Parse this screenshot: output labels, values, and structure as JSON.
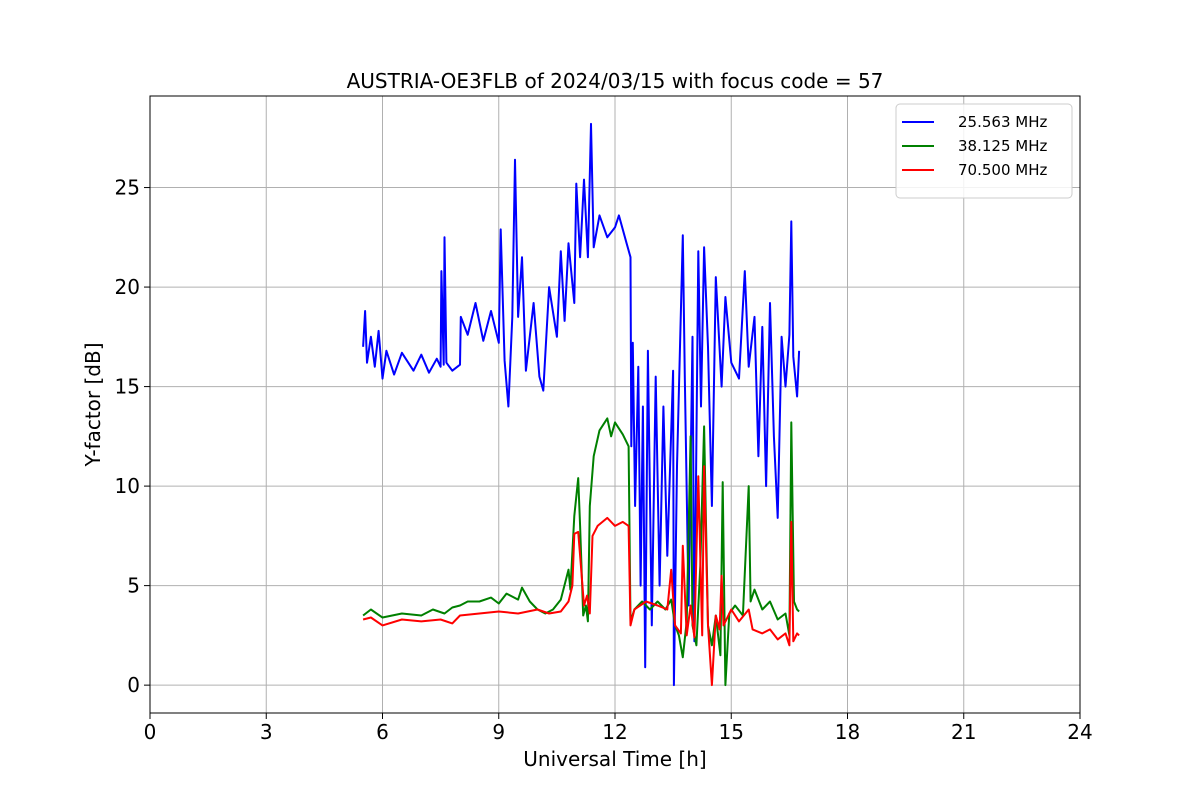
{
  "chart_data": {
    "type": "line",
    "title": "AUSTRIA-OE3FLB of 2024/03/15 with focus code = 57",
    "xlabel": "Universal Time [h]",
    "ylabel": "Y-factor [dB]",
    "xlim": [
      0,
      24
    ],
    "ylim": [
      -1.4,
      29.6
    ],
    "xticks": [
      0,
      3,
      6,
      9,
      12,
      15,
      18,
      21,
      24
    ],
    "yticks": [
      0,
      5,
      10,
      15,
      20,
      25
    ],
    "grid": true,
    "legend_position": "top-right",
    "series": [
      {
        "name": "25.563 MHz",
        "color": "#0000ff",
        "points": [
          [
            5.5,
            17.0
          ],
          [
            5.55,
            18.8
          ],
          [
            5.6,
            16.2
          ],
          [
            5.7,
            17.5
          ],
          [
            5.8,
            16.0
          ],
          [
            5.9,
            17.8
          ],
          [
            6.0,
            15.4
          ],
          [
            6.1,
            16.8
          ],
          [
            6.3,
            15.6
          ],
          [
            6.5,
            16.7
          ],
          [
            6.8,
            15.8
          ],
          [
            7.0,
            16.6
          ],
          [
            7.2,
            15.7
          ],
          [
            7.4,
            16.4
          ],
          [
            7.5,
            16.0
          ],
          [
            7.52,
            20.8
          ],
          [
            7.58,
            16.1
          ],
          [
            7.6,
            22.5
          ],
          [
            7.65,
            16.2
          ],
          [
            7.8,
            15.8
          ],
          [
            8.0,
            16.1
          ],
          [
            8.02,
            18.5
          ],
          [
            8.2,
            17.6
          ],
          [
            8.4,
            19.2
          ],
          [
            8.6,
            17.3
          ],
          [
            8.8,
            18.8
          ],
          [
            9.0,
            17.2
          ],
          [
            9.05,
            22.9
          ],
          [
            9.15,
            16.3
          ],
          [
            9.25,
            14.0
          ],
          [
            9.35,
            18.5
          ],
          [
            9.42,
            26.4
          ],
          [
            9.5,
            18.5
          ],
          [
            9.6,
            21.5
          ],
          [
            9.7,
            15.8
          ],
          [
            9.9,
            19.2
          ],
          [
            10.05,
            15.5
          ],
          [
            10.15,
            14.8
          ],
          [
            10.3,
            20.0
          ],
          [
            10.5,
            17.5
          ],
          [
            10.6,
            21.8
          ],
          [
            10.7,
            18.3
          ],
          [
            10.8,
            22.2
          ],
          [
            10.95,
            19.2
          ],
          [
            11.0,
            25.2
          ],
          [
            11.1,
            21.5
          ],
          [
            11.2,
            25.4
          ],
          [
            11.3,
            21.5
          ],
          [
            11.38,
            28.2
          ],
          [
            11.45,
            22.0
          ],
          [
            11.6,
            23.6
          ],
          [
            11.8,
            22.5
          ],
          [
            12.0,
            23.0
          ],
          [
            12.1,
            23.6
          ],
          [
            12.3,
            22.2
          ],
          [
            12.4,
            21.5
          ],
          [
            12.42,
            12.0
          ],
          [
            12.46,
            17.2
          ],
          [
            12.52,
            9.0
          ],
          [
            12.6,
            16.0
          ],
          [
            12.66,
            5.0
          ],
          [
            12.72,
            14.0
          ],
          [
            12.78,
            0.9
          ],
          [
            12.85,
            16.8
          ],
          [
            12.95,
            3.0
          ],
          [
            13.05,
            15.5
          ],
          [
            13.15,
            5.0
          ],
          [
            13.25,
            14.0
          ],
          [
            13.35,
            6.5
          ],
          [
            13.5,
            15.8
          ],
          [
            13.52,
            0.0
          ],
          [
            13.6,
            11.0
          ],
          [
            13.75,
            22.6
          ],
          [
            13.8,
            15.5
          ],
          [
            13.9,
            4.0
          ],
          [
            14.0,
            17.5
          ],
          [
            14.05,
            2.2
          ],
          [
            14.15,
            21.8
          ],
          [
            14.22,
            14.0
          ],
          [
            14.3,
            22.0
          ],
          [
            14.4,
            17.0
          ],
          [
            14.5,
            9.0
          ],
          [
            14.6,
            20.5
          ],
          [
            14.75,
            15.0
          ],
          [
            14.85,
            19.5
          ],
          [
            15.0,
            16.2
          ],
          [
            15.2,
            15.4
          ],
          [
            15.35,
            20.8
          ],
          [
            15.45,
            16.0
          ],
          [
            15.6,
            18.5
          ],
          [
            15.7,
            11.5
          ],
          [
            15.8,
            18.0
          ],
          [
            15.9,
            10.0
          ],
          [
            16.0,
            19.2
          ],
          [
            16.1,
            12.5
          ],
          [
            16.2,
            8.4
          ],
          [
            16.3,
            17.5
          ],
          [
            16.4,
            15.0
          ],
          [
            16.5,
            17.6
          ],
          [
            16.55,
            23.3
          ],
          [
            16.6,
            16.5
          ],
          [
            16.7,
            14.5
          ],
          [
            16.75,
            16.8
          ]
        ]
      },
      {
        "name": "38.125 MHz",
        "color": "#008000",
        "points": [
          [
            5.5,
            3.5
          ],
          [
            5.7,
            3.8
          ],
          [
            6.0,
            3.4
          ],
          [
            6.5,
            3.6
          ],
          [
            7.0,
            3.5
          ],
          [
            7.3,
            3.8
          ],
          [
            7.6,
            3.6
          ],
          [
            7.8,
            3.9
          ],
          [
            8.0,
            4.0
          ],
          [
            8.2,
            4.2
          ],
          [
            8.5,
            4.2
          ],
          [
            8.8,
            4.4
          ],
          [
            9.0,
            4.1
          ],
          [
            9.2,
            4.6
          ],
          [
            9.5,
            4.3
          ],
          [
            9.6,
            4.9
          ],
          [
            9.8,
            4.2
          ],
          [
            10.0,
            3.8
          ],
          [
            10.2,
            3.6
          ],
          [
            10.4,
            3.8
          ],
          [
            10.6,
            4.3
          ],
          [
            10.8,
            5.8
          ],
          [
            10.85,
            4.8
          ],
          [
            10.95,
            8.5
          ],
          [
            11.05,
            10.4
          ],
          [
            11.1,
            8.0
          ],
          [
            11.18,
            3.5
          ],
          [
            11.25,
            4.0
          ],
          [
            11.3,
            3.2
          ],
          [
            11.35,
            9.0
          ],
          [
            11.45,
            11.5
          ],
          [
            11.6,
            12.8
          ],
          [
            11.8,
            13.4
          ],
          [
            11.9,
            12.5
          ],
          [
            12.0,
            13.2
          ],
          [
            12.2,
            12.6
          ],
          [
            12.35,
            12.0
          ],
          [
            12.4,
            3.2
          ],
          [
            12.5,
            3.8
          ],
          [
            12.7,
            4.2
          ],
          [
            12.9,
            3.8
          ],
          [
            13.1,
            4.2
          ],
          [
            13.3,
            3.8
          ],
          [
            13.45,
            4.3
          ],
          [
            13.55,
            3.0
          ],
          [
            13.65,
            2.5
          ],
          [
            13.75,
            1.4
          ],
          [
            13.85,
            3.2
          ],
          [
            13.95,
            12.5
          ],
          [
            14.0,
            3.0
          ],
          [
            14.1,
            2.0
          ],
          [
            14.2,
            6.0
          ],
          [
            14.3,
            13.0
          ],
          [
            14.4,
            3.0
          ],
          [
            14.5,
            2.0
          ],
          [
            14.6,
            3.5
          ],
          [
            14.72,
            1.5
          ],
          [
            14.78,
            10.2
          ],
          [
            14.85,
            0.0
          ],
          [
            14.95,
            3.6
          ],
          [
            15.1,
            4.0
          ],
          [
            15.3,
            3.5
          ],
          [
            15.45,
            10.0
          ],
          [
            15.5,
            4.2
          ],
          [
            15.6,
            4.8
          ],
          [
            15.8,
            3.8
          ],
          [
            16.0,
            4.2
          ],
          [
            16.2,
            3.3
          ],
          [
            16.4,
            3.6
          ],
          [
            16.5,
            2.5
          ],
          [
            16.55,
            13.2
          ],
          [
            16.62,
            4.2
          ],
          [
            16.7,
            3.8
          ],
          [
            16.75,
            3.7
          ]
        ]
      },
      {
        "name": "70.500 MHz",
        "color": "#ff0000",
        "points": [
          [
            5.5,
            3.3
          ],
          [
            5.7,
            3.4
          ],
          [
            6.0,
            3.0
          ],
          [
            6.5,
            3.3
          ],
          [
            7.0,
            3.2
          ],
          [
            7.5,
            3.3
          ],
          [
            7.8,
            3.1
          ],
          [
            8.0,
            3.5
          ],
          [
            8.5,
            3.6
          ],
          [
            9.0,
            3.7
          ],
          [
            9.5,
            3.6
          ],
          [
            10.0,
            3.8
          ],
          [
            10.3,
            3.6
          ],
          [
            10.6,
            3.7
          ],
          [
            10.8,
            4.2
          ],
          [
            10.9,
            5.0
          ],
          [
            10.95,
            7.6
          ],
          [
            11.05,
            7.7
          ],
          [
            11.12,
            6.0
          ],
          [
            11.2,
            4.0
          ],
          [
            11.28,
            4.5
          ],
          [
            11.35,
            3.6
          ],
          [
            11.42,
            7.5
          ],
          [
            11.55,
            8.0
          ],
          [
            11.8,
            8.4
          ],
          [
            12.0,
            8.0
          ],
          [
            12.2,
            8.2
          ],
          [
            12.35,
            8.0
          ],
          [
            12.4,
            3.0
          ],
          [
            12.5,
            3.8
          ],
          [
            12.8,
            4.2
          ],
          [
            13.1,
            4.0
          ],
          [
            13.35,
            3.8
          ],
          [
            13.45,
            5.8
          ],
          [
            13.55,
            3.0
          ],
          [
            13.7,
            2.6
          ],
          [
            13.75,
            7.0
          ],
          [
            13.85,
            2.5
          ],
          [
            13.95,
            4.0
          ],
          [
            14.05,
            2.4
          ],
          [
            14.15,
            10.5
          ],
          [
            14.25,
            2.5
          ],
          [
            14.3,
            11.0
          ],
          [
            14.4,
            3.0
          ],
          [
            14.5,
            0.0
          ],
          [
            14.6,
            3.5
          ],
          [
            14.7,
            2.8
          ],
          [
            14.75,
            5.5
          ],
          [
            14.8,
            3.0
          ],
          [
            15.0,
            3.8
          ],
          [
            15.2,
            3.2
          ],
          [
            15.45,
            3.8
          ],
          [
            15.55,
            2.8
          ],
          [
            15.8,
            2.6
          ],
          [
            16.0,
            2.8
          ],
          [
            16.2,
            2.3
          ],
          [
            16.4,
            2.6
          ],
          [
            16.5,
            2.0
          ],
          [
            16.55,
            8.2
          ],
          [
            16.6,
            2.2
          ],
          [
            16.7,
            2.6
          ],
          [
            16.75,
            2.5
          ]
        ]
      }
    ]
  }
}
